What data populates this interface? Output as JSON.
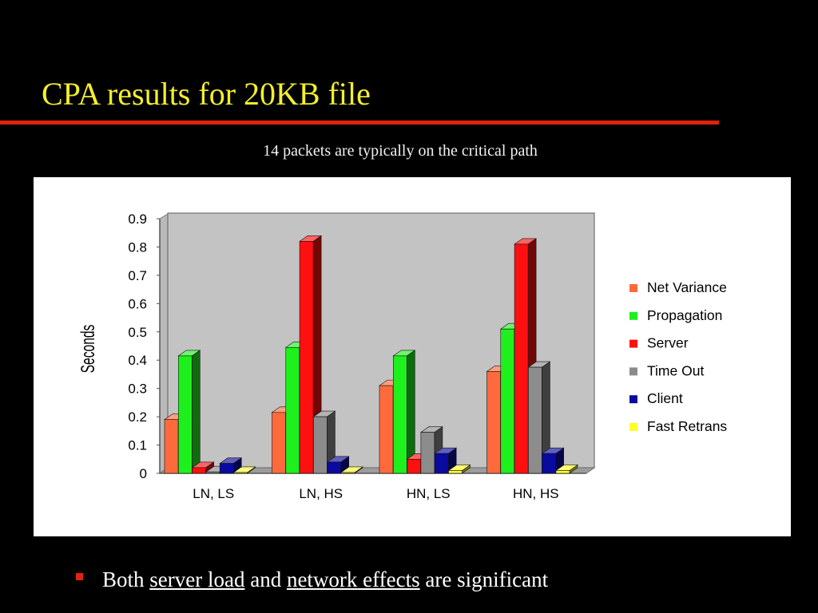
{
  "slide": {
    "title": "CPA results for 20KB file",
    "subtitle": "14 packets are typically on the critical path",
    "bullet": {
      "part1": "Both",
      "link1": "server load",
      "part2": "and",
      "link2": "network effects",
      "part3": "are significant"
    }
  },
  "chart_data": {
    "type": "bar",
    "variant": "3d-clustered",
    "ylabel": "Seconds",
    "ylim": [
      0,
      0.9
    ],
    "yticks": [
      "0",
      "0.1",
      "0.2",
      "0.3",
      "0.4",
      "0.5",
      "0.6",
      "0.7",
      "0.8",
      "0.9"
    ],
    "categories": [
      "LN, LS",
      "LN, HS",
      "HN, LS",
      "HN, HS"
    ],
    "legend_position": "right",
    "series": [
      {
        "name": "Net Variance",
        "color": "#ff6a3d",
        "values": [
          0.19,
          0.215,
          0.31,
          0.36
        ]
      },
      {
        "name": "Propagation",
        "color": "#1ef01e",
        "values": [
          0.415,
          0.445,
          0.415,
          0.51
        ]
      },
      {
        "name": "Server",
        "color": "#ff1010",
        "values": [
          0.02,
          0.82,
          0.05,
          0.81
        ]
      },
      {
        "name": "Time Out",
        "color": "#8c8c8c",
        "values": [
          0.005,
          0.2,
          0.145,
          0.375
        ]
      },
      {
        "name": "Client",
        "color": "#0a0aa0",
        "values": [
          0.035,
          0.04,
          0.07,
          0.07
        ]
      },
      {
        "name": "Fast Retrans",
        "color": "#ffff2a",
        "values": [
          0.003,
          0.003,
          0.01,
          0.01
        ]
      }
    ]
  }
}
